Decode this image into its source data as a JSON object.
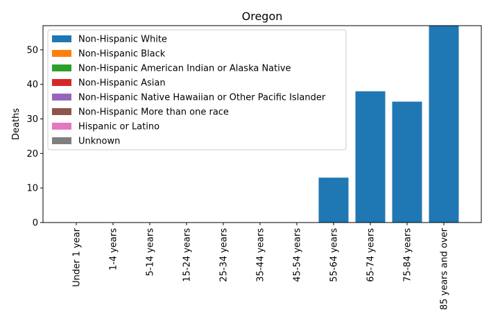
{
  "chart_data": {
    "type": "bar",
    "stacked": true,
    "title": "Oregon",
    "xlabel": "",
    "ylabel": "Deaths",
    "ylim": [
      0,
      57
    ],
    "yticks": [
      0,
      10,
      20,
      30,
      40,
      50
    ],
    "categories": [
      "Under 1 year",
      "1-4 years",
      "5-14 years",
      "15-24 years",
      "25-34 years",
      "35-44 years",
      "45-54 years",
      "55-64 years",
      "65-74 years",
      "75-84 years",
      "85 years and over"
    ],
    "series": [
      {
        "name": "Non-Hispanic White",
        "color": "#1f77b4",
        "values": [
          0,
          0,
          0,
          0,
          0,
          0,
          0,
          13,
          38,
          35,
          57
        ]
      },
      {
        "name": "Non-Hispanic Black",
        "color": "#ff7f0e",
        "values": [
          0,
          0,
          0,
          0,
          0,
          0,
          0,
          0,
          0,
          0,
          0
        ]
      },
      {
        "name": "Non-Hispanic American Indian or Alaska Native",
        "color": "#2ca02c",
        "values": [
          0,
          0,
          0,
          0,
          0,
          0,
          0,
          0,
          0,
          0,
          0
        ]
      },
      {
        "name": "Non-Hispanic Asian",
        "color": "#d62728",
        "values": [
          0,
          0,
          0,
          0,
          0,
          0,
          0,
          0,
          0,
          0,
          0
        ]
      },
      {
        "name": "Non-Hispanic Native Hawaiian or Other Pacific Islander",
        "color": "#9467bd",
        "values": [
          0,
          0,
          0,
          0,
          0,
          0,
          0,
          0,
          0,
          0,
          0
        ]
      },
      {
        "name": "Non-Hispanic More than one race",
        "color": "#8c564b",
        "values": [
          0,
          0,
          0,
          0,
          0,
          0,
          0,
          0,
          0,
          0,
          0
        ]
      },
      {
        "name": "Hispanic or Latino",
        "color": "#e377c2",
        "values": [
          0,
          0,
          0,
          0,
          0,
          0,
          0,
          0,
          0,
          0,
          0
        ]
      },
      {
        "name": "Unknown",
        "color": "#7f7f7f",
        "values": [
          0,
          0,
          0,
          0,
          0,
          0,
          0,
          0,
          0,
          0,
          0
        ]
      }
    ],
    "legend_position": "top-left",
    "grid": false
  }
}
